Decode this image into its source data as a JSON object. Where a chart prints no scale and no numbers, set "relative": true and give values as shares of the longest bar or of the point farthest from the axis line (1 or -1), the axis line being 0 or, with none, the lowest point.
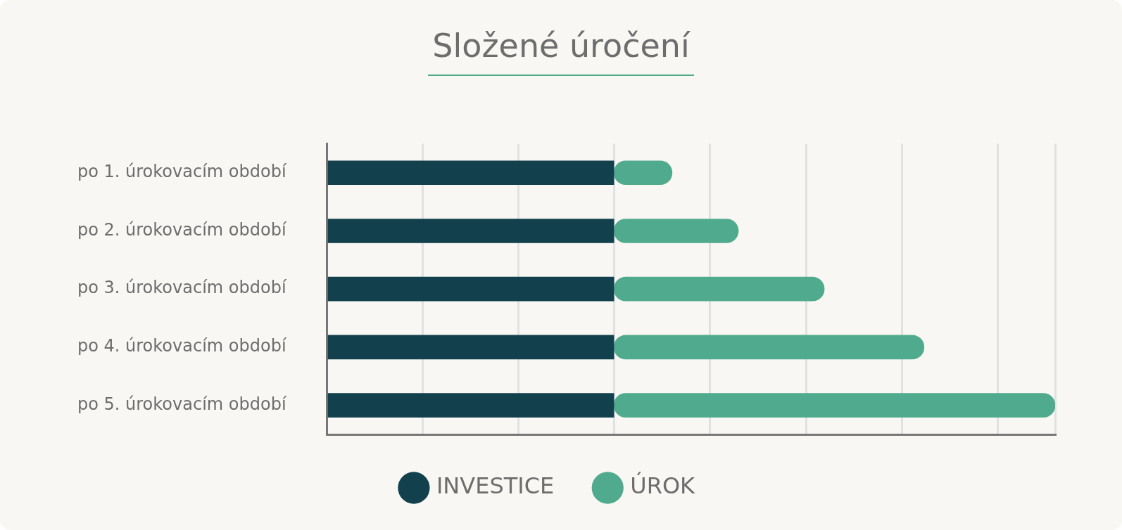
{
  "chart_data": {
    "type": "bar",
    "title": "Složené úročení",
    "orientation": "horizontal",
    "stacked": true,
    "relative": true,
    "grid": "x",
    "legend": "bottom",
    "categories": [
      "po 1. úrokovacím období",
      "po 2. úrokovacím období",
      "po 3. úrokovacím období",
      "po 4. úrokovacím období",
      "po 5. úrokovacím období"
    ],
    "series": [
      {
        "name": "INVESTICE",
        "color": "#12414d",
        "values": [
          0.394,
          0.394,
          0.394,
          0.394,
          0.394
        ]
      },
      {
        "name": "ÚROK",
        "color": "#50ab8e",
        "values": [
          0.08,
          0.171,
          0.289,
          0.426,
          0.606
        ]
      }
    ]
  }
}
